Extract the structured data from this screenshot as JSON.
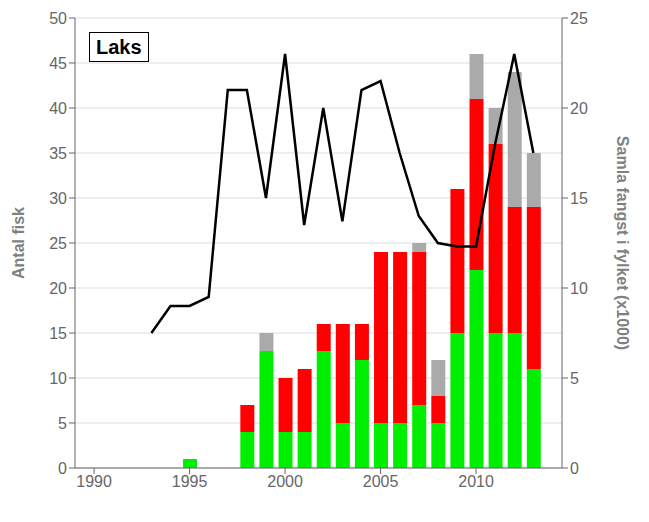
{
  "chart_data": {
    "type": "bar",
    "title": "Laks",
    "ylabel": "Antal fisk",
    "y2label": "Samla fangst i fylket (x1000)",
    "x": [
      1995,
      1998,
      1999,
      2000,
      2001,
      2002,
      2003,
      2004,
      2005,
      2006,
      2007,
      2008,
      2009,
      2010,
      2011,
      2012,
      2013
    ],
    "xlim": [
      1989,
      2014.5
    ],
    "xticks": [
      1990,
      1995,
      2000,
      2005,
      2010
    ],
    "ylim": [
      0,
      50
    ],
    "yticks": [
      0,
      5,
      10,
      15,
      20,
      25,
      30,
      35,
      40,
      45,
      50
    ],
    "y2lim": [
      0,
      25
    ],
    "y2ticks": [
      0,
      5,
      10,
      15,
      20,
      25
    ],
    "stacked": true,
    "grid": "y",
    "series": [
      {
        "color": "#00ee00",
        "values": [
          1,
          4,
          13,
          4,
          4,
          13,
          5,
          12,
          5,
          5,
          7,
          5,
          15,
          22,
          15,
          15,
          11
        ]
      },
      {
        "color": "#ff0000",
        "values": [
          0,
          3,
          0,
          6,
          7,
          3,
          11,
          4,
          19,
          19,
          17,
          3,
          16,
          19,
          21,
          14,
          18
        ]
      },
      {
        "color": "#aaaaaa",
        "values": [
          0,
          0,
          2,
          0,
          0,
          0,
          0,
          0,
          0,
          0,
          1,
          4,
          0,
          5,
          4,
          15,
          6
        ]
      },
      {
        "type": "line",
        "axis": "y2",
        "color": "#000000",
        "x": [
          1993,
          1994,
          1995,
          1996,
          1997,
          1998,
          1999,
          2000,
          2001,
          2002,
          2003,
          2004,
          2005,
          2006,
          2007,
          2008,
          2009,
          2010,
          2011,
          2012,
          2013
        ],
        "values": [
          7.5,
          9.0,
          9.0,
          9.5,
          21,
          21,
          15,
          23,
          13.5,
          20,
          13.7,
          21,
          21.5,
          17.5,
          14,
          12.5,
          12.3,
          12.3,
          18,
          23,
          17.5
        ]
      }
    ]
  }
}
